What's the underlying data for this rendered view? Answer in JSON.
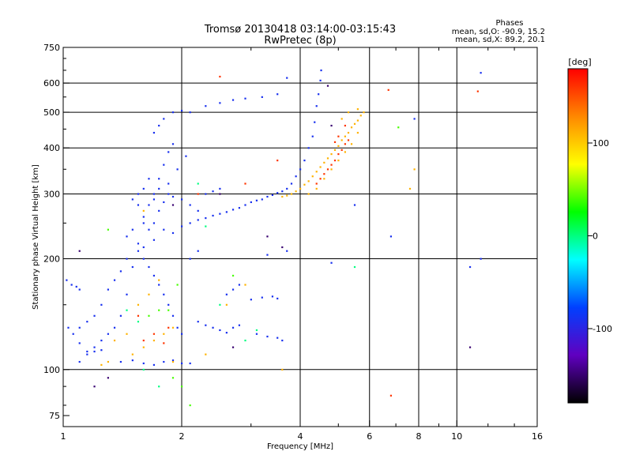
{
  "chart_data": {
    "type": "scatter",
    "title": "Tromsø 20130418 03:14:00-03:15:43",
    "subtitle": "RwPretec (8p)",
    "xlabel": "Frequency [MHz]",
    "ylabel": "Stationary phase Virtual Height [km]",
    "x_scale": "log",
    "y_scale": "log",
    "xlim": [
      1,
      16
    ],
    "ylim": [
      70,
      750
    ],
    "x_ticks": [
      1,
      2,
      4,
      6,
      8,
      10,
      16
    ],
    "x_tick_labels": [
      "1",
      "2",
      "4",
      "6",
      "8",
      "10",
      "16"
    ],
    "x_grid": [
      1,
      2,
      4,
      6,
      8,
      10,
      16
    ],
    "y_ticks": [
      75,
      100,
      200,
      300,
      400,
      500,
      600,
      750
    ],
    "y_tick_labels": [
      "75",
      "100",
      "200",
      "300",
      "400",
      "500",
      "600",
      "750"
    ],
    "y_grid": [
      100,
      200,
      300,
      400,
      500,
      600
    ],
    "grid": true,
    "phases": {
      "heading": "Phases",
      "line_o": "mean, sd,O: -90.9, 15.2",
      "line_x": "mean, sd,X:  89.2, 20.1"
    },
    "colorbar": {
      "label": "[deg]",
      "range": [
        -180,
        180
      ],
      "ticks": [
        100,
        0,
        -100
      ],
      "tick_labels": [
        "100",
        "0",
        "-100"
      ],
      "colors": [
        "#ff0000",
        "#ff8800",
        "#ffff00",
        "#00ff00",
        "#00ffff",
        "#0040ff",
        "#6000c0",
        "#000000"
      ]
    },
    "series": [
      {
        "phase": -90,
        "points": [
          [
            1.02,
            175
          ],
          [
            1.05,
            170
          ],
          [
            1.08,
            168
          ],
          [
            1.1,
            165
          ],
          [
            1.03,
            130
          ],
          [
            1.06,
            125
          ],
          [
            1.1,
            118
          ],
          [
            1.15,
            112
          ],
          [
            1.2,
            115
          ],
          [
            1.25,
            120
          ],
          [
            1.3,
            125
          ],
          [
            1.35,
            130
          ],
          [
            1.4,
            140
          ],
          [
            1.45,
            160
          ],
          [
            1.5,
            190
          ],
          [
            1.55,
            220
          ],
          [
            1.6,
            250
          ],
          [
            1.65,
            280
          ],
          [
            1.7,
            300
          ],
          [
            1.75,
            330
          ],
          [
            1.8,
            360
          ],
          [
            1.85,
            390
          ],
          [
            1.9,
            410
          ],
          [
            1.5,
            290
          ],
          [
            1.55,
            280
          ],
          [
            1.6,
            260
          ],
          [
            1.7,
            250
          ],
          [
            1.8,
            240
          ],
          [
            1.9,
            235
          ],
          [
            2.0,
            245
          ],
          [
            2.1,
            250
          ],
          [
            2.2,
            255
          ],
          [
            2.3,
            258
          ],
          [
            2.4,
            262
          ],
          [
            2.5,
            265
          ],
          [
            2.6,
            268
          ],
          [
            2.7,
            272
          ],
          [
            2.8,
            275
          ],
          [
            2.9,
            280
          ],
          [
            3.0,
            285
          ],
          [
            3.1,
            288
          ],
          [
            3.2,
            290
          ],
          [
            3.3,
            295
          ],
          [
            3.4,
            298
          ],
          [
            3.5,
            302
          ],
          [
            3.6,
            305
          ],
          [
            3.7,
            310
          ],
          [
            3.8,
            320
          ],
          [
            3.9,
            335
          ],
          [
            4.0,
            350
          ],
          [
            4.1,
            370
          ],
          [
            4.2,
            400
          ],
          [
            4.3,
            430
          ],
          [
            4.35,
            470
          ],
          [
            4.4,
            520
          ],
          [
            4.45,
            560
          ],
          [
            4.5,
            610
          ],
          [
            4.52,
            650
          ],
          [
            1.55,
            300
          ],
          [
            1.6,
            310
          ],
          [
            1.65,
            330
          ],
          [
            1.7,
            290
          ],
          [
            1.75,
            270
          ],
          [
            1.8,
            285
          ],
          [
            1.85,
            300
          ],
          [
            1.9,
            295
          ],
          [
            2.0,
            290
          ],
          [
            2.1,
            280
          ],
          [
            2.2,
            270
          ],
          [
            2.3,
            300
          ],
          [
            2.4,
            305
          ],
          [
            2.5,
            310
          ],
          [
            1.6,
            200
          ],
          [
            1.65,
            190
          ],
          [
            1.7,
            180
          ],
          [
            1.75,
            170
          ],
          [
            1.8,
            160
          ],
          [
            1.85,
            150
          ],
          [
            1.9,
            140
          ],
          [
            1.95,
            130
          ],
          [
            2.0,
            125
          ],
          [
            1.4,
            105
          ],
          [
            1.5,
            106
          ],
          [
            1.6,
            104
          ],
          [
            1.7,
            103
          ],
          [
            1.8,
            105
          ],
          [
            1.9,
            106
          ],
          [
            2.0,
            104
          ],
          [
            2.1,
            104
          ],
          [
            2.2,
            135
          ],
          [
            2.3,
            132
          ],
          [
            2.4,
            130
          ],
          [
            2.5,
            128
          ],
          [
            2.6,
            126
          ],
          [
            2.7,
            130
          ],
          [
            2.8,
            132
          ],
          [
            3.0,
            155
          ],
          [
            3.2,
            157
          ],
          [
            3.4,
            158
          ],
          [
            3.5,
            156
          ],
          [
            3.1,
            125
          ],
          [
            3.3,
            123
          ],
          [
            3.5,
            122
          ],
          [
            3.6,
            120
          ],
          [
            1.7,
            440
          ],
          [
            1.75,
            460
          ],
          [
            1.8,
            480
          ],
          [
            1.9,
            500
          ],
          [
            2.0,
            505
          ],
          [
            2.1,
            500
          ],
          [
            2.3,
            520
          ],
          [
            2.5,
            530
          ],
          [
            2.7,
            540
          ],
          [
            2.9,
            545
          ],
          [
            3.2,
            550
          ],
          [
            3.5,
            560
          ],
          [
            3.7,
            620
          ],
          [
            1.45,
            230
          ],
          [
            1.5,
            240
          ],
          [
            1.55,
            210
          ],
          [
            1.45,
            200
          ],
          [
            1.4,
            185
          ],
          [
            1.35,
            175
          ],
          [
            1.3,
            165
          ],
          [
            1.25,
            150
          ],
          [
            1.2,
            140
          ],
          [
            1.15,
            135
          ],
          [
            1.1,
            130
          ],
          [
            1.1,
            105
          ],
          [
            1.15,
            110
          ],
          [
            1.2,
            112
          ],
          [
            1.25,
            113
          ],
          [
            2.1,
            200
          ],
          [
            2.2,
            210
          ],
          [
            2.05,
            380
          ],
          [
            1.95,
            350
          ],
          [
            1.85,
            320
          ],
          [
            1.75,
            310
          ],
          [
            1.65,
            240
          ],
          [
            1.7,
            225
          ],
          [
            1.6,
            215
          ],
          [
            2.6,
            160
          ],
          [
            2.7,
            165
          ],
          [
            2.8,
            170
          ],
          [
            11.5,
            200
          ],
          [
            10.8,
            190
          ],
          [
            7.8,
            480
          ],
          [
            11.5,
            640
          ],
          [
            6.8,
            230
          ],
          [
            5.5,
            280
          ],
          [
            4.8,
            195
          ],
          [
            3.3,
            205
          ],
          [
            3.7,
            210
          ]
        ]
      },
      {
        "phase": 110,
        "points": [
          [
            3.6,
            295
          ],
          [
            3.7,
            297
          ],
          [
            3.8,
            300
          ],
          [
            3.9,
            305
          ],
          [
            4.0,
            310
          ],
          [
            4.1,
            318
          ],
          [
            4.2,
            325
          ],
          [
            4.3,
            335
          ],
          [
            4.4,
            345
          ],
          [
            4.5,
            355
          ],
          [
            4.6,
            365
          ],
          [
            4.7,
            375
          ],
          [
            4.8,
            385
          ],
          [
            4.9,
            395
          ],
          [
            5.0,
            405
          ],
          [
            5.1,
            420
          ],
          [
            5.2,
            430
          ],
          [
            5.3,
            440
          ],
          [
            5.4,
            455
          ],
          [
            5.5,
            465
          ],
          [
            5.6,
            475
          ],
          [
            5.7,
            490
          ],
          [
            5.8,
            500
          ],
          [
            4.2,
            300
          ],
          [
            4.4,
            310
          ],
          [
            4.6,
            330
          ],
          [
            4.8,
            350
          ],
          [
            5.0,
            370
          ],
          [
            5.2,
            390
          ],
          [
            5.4,
            410
          ],
          [
            5.6,
            440
          ],
          [
            1.5,
            110
          ],
          [
            1.6,
            115
          ],
          [
            1.7,
            120
          ],
          [
            1.8,
            125
          ],
          [
            1.9,
            130
          ],
          [
            1.55,
            150
          ],
          [
            1.65,
            160
          ],
          [
            1.75,
            175
          ],
          [
            1.45,
            125
          ],
          [
            1.35,
            120
          ],
          [
            1.25,
            103
          ],
          [
            1.3,
            105
          ],
          [
            1.9,
            105
          ],
          [
            2.3,
            110
          ],
          [
            3.6,
            100
          ],
          [
            5.1,
            480
          ],
          [
            5.3,
            500
          ],
          [
            5.6,
            510
          ],
          [
            7.6,
            310
          ],
          [
            7.8,
            350
          ],
          [
            2.6,
            150
          ],
          [
            2.9,
            170
          ],
          [
            1.6,
            270
          ]
        ]
      },
      {
        "phase": 160,
        "points": [
          [
            4.5,
            330
          ],
          [
            4.6,
            340
          ],
          [
            4.7,
            350
          ],
          [
            4.8,
            360
          ],
          [
            4.9,
            370
          ],
          [
            5.0,
            385
          ],
          [
            5.1,
            395
          ],
          [
            5.2,
            410
          ],
          [
            5.3,
            420
          ],
          [
            4.4,
            320
          ],
          [
            4.9,
            415
          ],
          [
            5.0,
            430
          ],
          [
            5.2,
            460
          ],
          [
            1.6,
            120
          ],
          [
            1.7,
            125
          ],
          [
            1.8,
            118
          ],
          [
            2.5,
            625
          ],
          [
            3.5,
            370
          ],
          [
            6.7,
            575
          ],
          [
            11.3,
            570
          ],
          [
            6.8,
            85
          ],
          [
            1.55,
            140
          ],
          [
            1.85,
            130
          ],
          [
            2.2,
            300
          ],
          [
            2.9,
            320
          ]
        ]
      },
      {
        "phase": 40,
        "points": [
          [
            1.65,
            140
          ],
          [
            1.75,
            145
          ],
          [
            1.85,
            145
          ],
          [
            1.3,
            240
          ],
          [
            2.0,
            90
          ],
          [
            2.1,
            80
          ],
          [
            1.9,
            95
          ],
          [
            7.1,
            455
          ],
          [
            1.95,
            170
          ],
          [
            2.7,
            180
          ]
        ]
      },
      {
        "phase": 0,
        "points": [
          [
            2.3,
            245
          ],
          [
            2.5,
            150
          ],
          [
            2.9,
            120
          ],
          [
            3.1,
            128
          ],
          [
            1.45,
            145
          ],
          [
            1.55,
            135
          ],
          [
            1.6,
            100
          ],
          [
            5.5,
            190
          ],
          [
            1.75,
            90
          ],
          [
            2.2,
            320
          ]
        ]
      },
      {
        "phase": -150,
        "points": [
          [
            1.2,
            90
          ],
          [
            1.3,
            95
          ],
          [
            2.7,
            115
          ],
          [
            3.3,
            230
          ],
          [
            4.8,
            460
          ],
          [
            3.6,
            215
          ],
          [
            4.7,
            590
          ],
          [
            1.1,
            210
          ],
          [
            10.8,
            115
          ],
          [
            1.9,
            280
          ],
          [
            2.5,
            300
          ]
        ]
      }
    ]
  }
}
